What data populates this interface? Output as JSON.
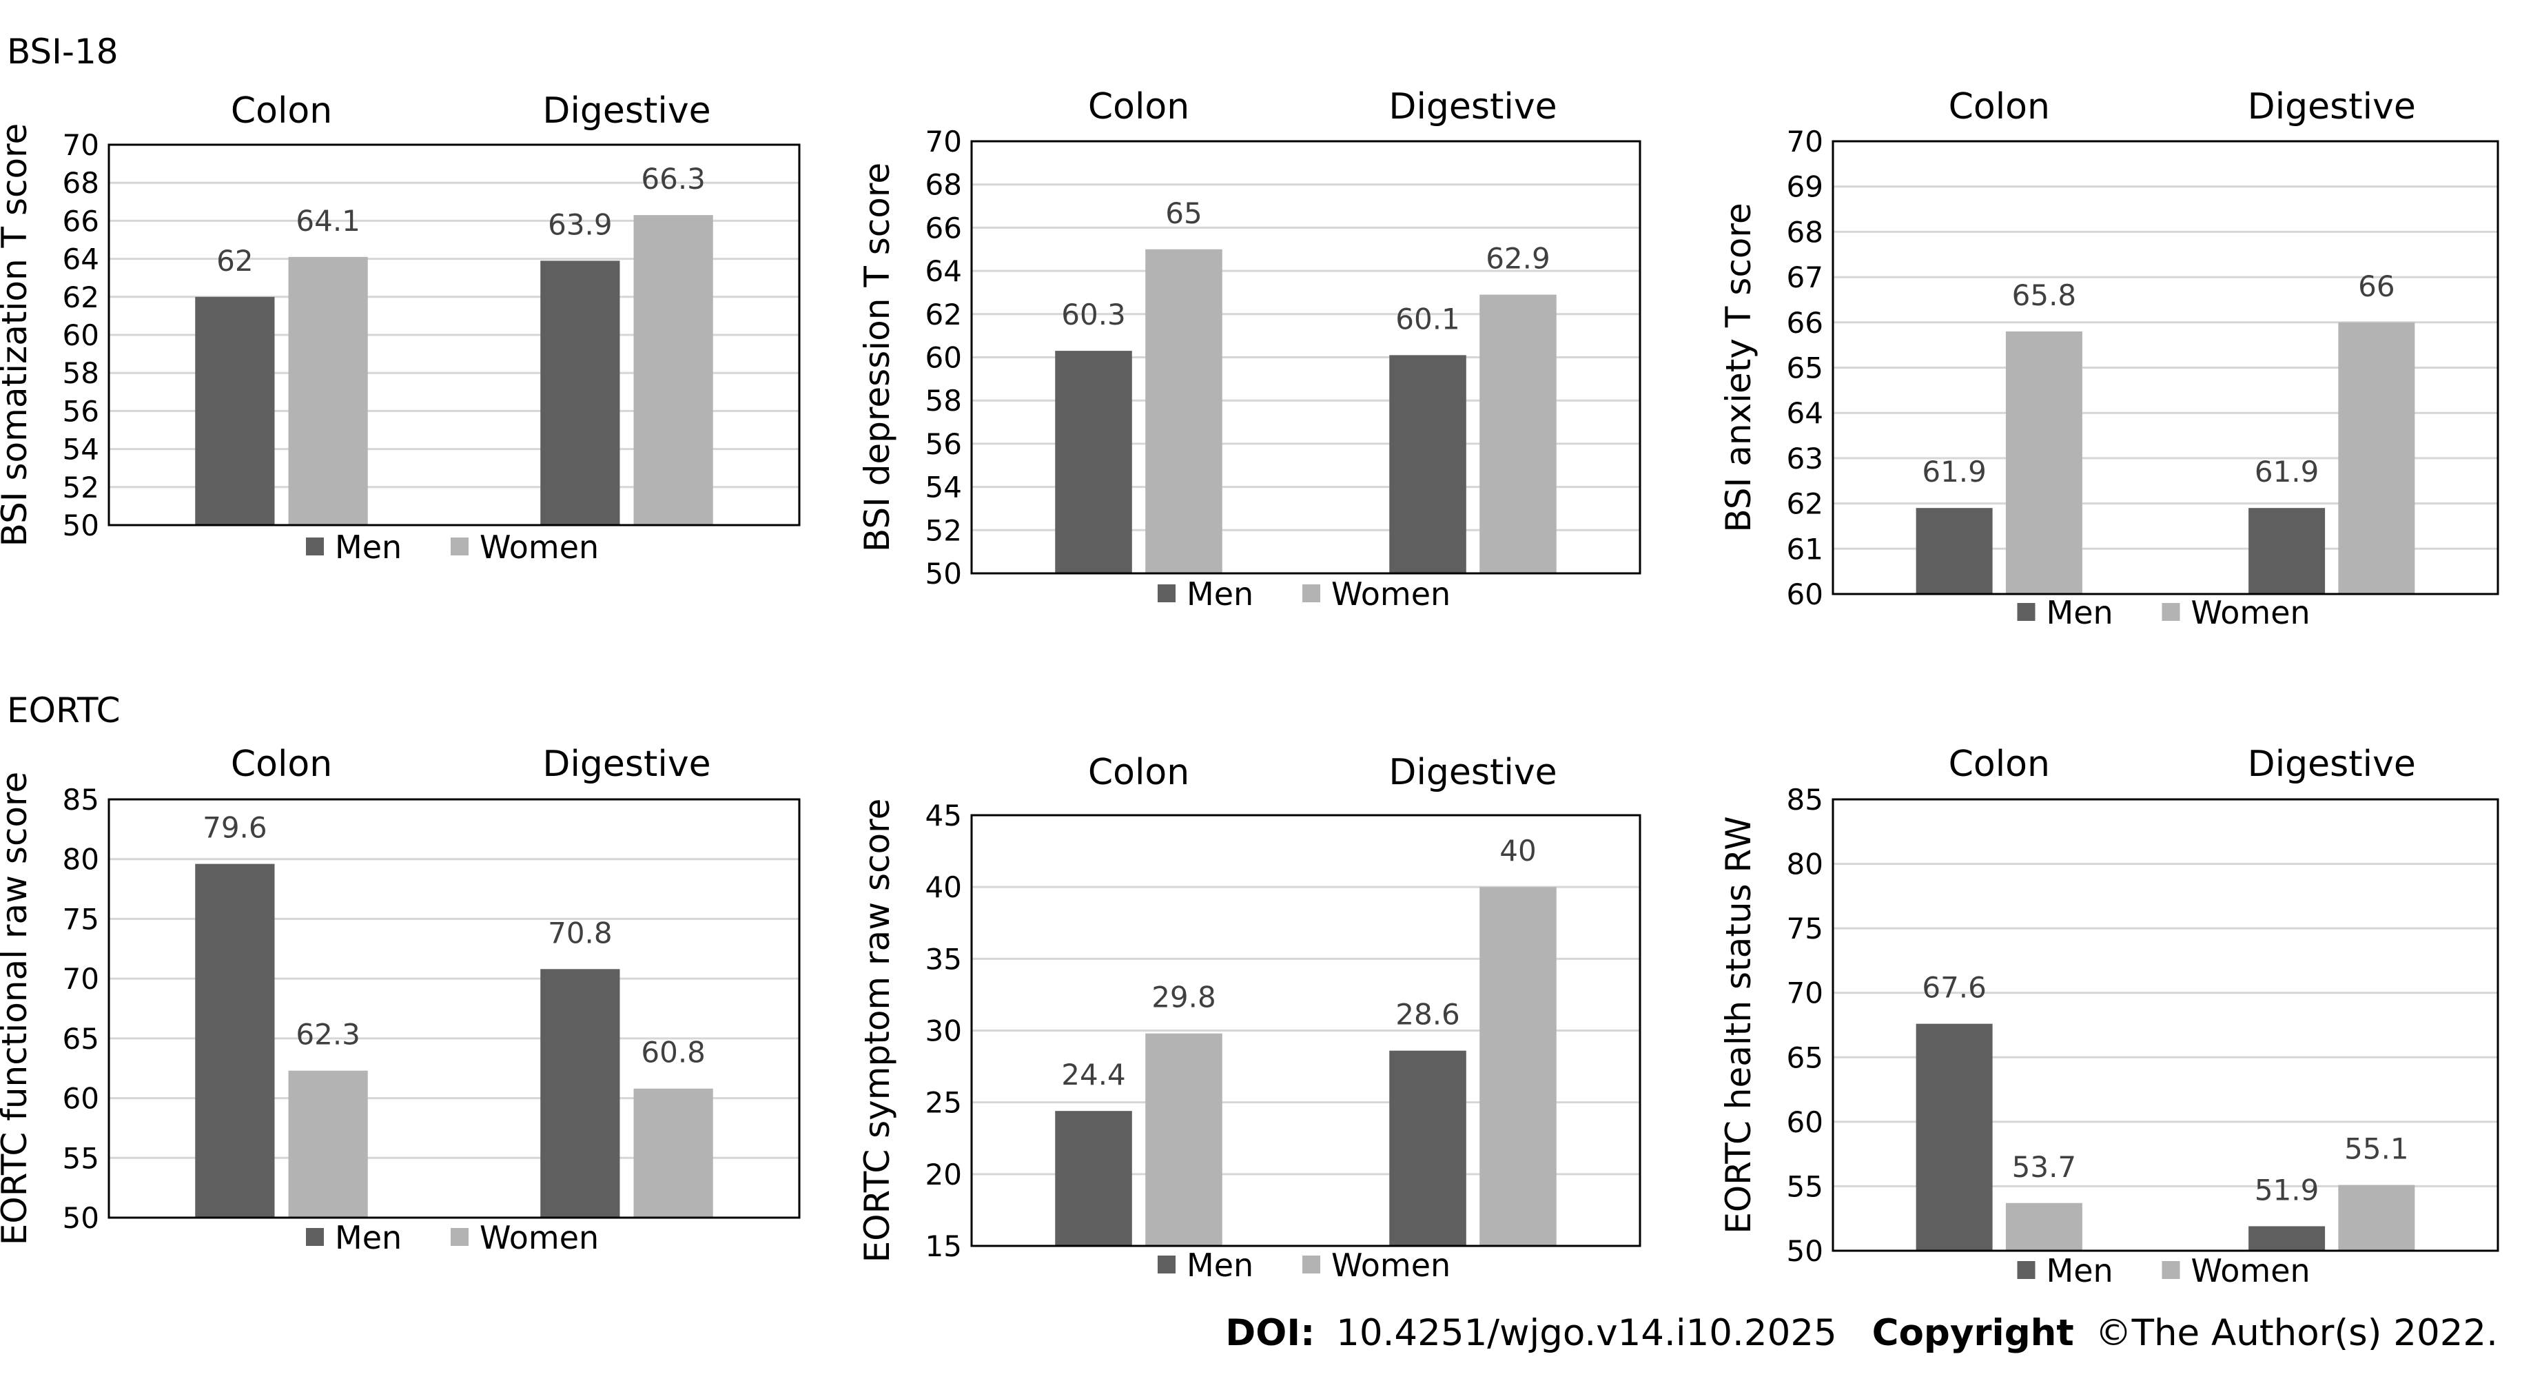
{
  "sections": [
    {
      "label": "BSI-18"
    },
    {
      "label": "EORTC"
    }
  ],
  "legend": {
    "men": "Men",
    "women": "Women"
  },
  "colors": {
    "men": "#5f5f5f",
    "women": "#b3b3b3",
    "grid": "#d6d6d6",
    "axis": "#000000",
    "value_label": "#404040"
  },
  "footer": {
    "doi_label": "DOI:",
    "doi": "10.4251/wjgo.v14.i10.2025",
    "copyright_label": "Copyright",
    "copyright": "©The Author(s) 2022."
  },
  "chart_data": [
    {
      "id": "bsi-somatization",
      "type": "bar",
      "ylabel": "BSI somatization T score",
      "categories": [
        "Colon",
        "Digestive"
      ],
      "series": [
        {
          "name": "Men",
          "values": [
            62,
            63.9
          ],
          "labels": [
            "62",
            "63.9"
          ]
        },
        {
          "name": "Women",
          "values": [
            64.1,
            66.3
          ],
          "labels": [
            "64.1",
            "66.3"
          ]
        }
      ],
      "ylim": [
        50,
        70
      ],
      "yticks": [
        50,
        52,
        54,
        56,
        58,
        60,
        62,
        64,
        66,
        68,
        70
      ],
      "grid": true,
      "legend": "bottom"
    },
    {
      "id": "bsi-depression",
      "type": "bar",
      "ylabel": "BSI depression T score",
      "categories": [
        "Colon",
        "Digestive"
      ],
      "series": [
        {
          "name": "Men",
          "values": [
            60.3,
            60.1
          ],
          "labels": [
            "60.3",
            "60.1"
          ]
        },
        {
          "name": "Women",
          "values": [
            65,
            62.9
          ],
          "labels": [
            "65",
            "62.9"
          ]
        }
      ],
      "ylim": [
        50,
        70
      ],
      "yticks": [
        50,
        52,
        54,
        56,
        58,
        60,
        62,
        64,
        66,
        68,
        70
      ],
      "grid": true,
      "legend": "bottom"
    },
    {
      "id": "bsi-anxiety",
      "type": "bar",
      "ylabel": "BSI anxiety T score",
      "categories": [
        "Colon",
        "Digestive"
      ],
      "series": [
        {
          "name": "Men",
          "values": [
            61.9,
            61.9
          ],
          "labels": [
            "61.9",
            "61.9"
          ]
        },
        {
          "name": "Women",
          "values": [
            65.8,
            66
          ],
          "labels": [
            "65.8",
            "66"
          ]
        }
      ],
      "ylim": [
        60,
        70
      ],
      "yticks": [
        60,
        61,
        62,
        63,
        64,
        65,
        66,
        67,
        68,
        69,
        70
      ],
      "grid": true,
      "legend": "bottom"
    },
    {
      "id": "eortc-functional",
      "type": "bar",
      "ylabel": "EORTC functional raw score",
      "categories": [
        "Colon",
        "Digestive"
      ],
      "series": [
        {
          "name": "Men",
          "values": [
            79.6,
            70.8
          ],
          "labels": [
            "79.6",
            "70.8"
          ]
        },
        {
          "name": "Women",
          "values": [
            62.3,
            60.8
          ],
          "labels": [
            "62.3",
            "60.8"
          ]
        }
      ],
      "ylim": [
        50,
        85
      ],
      "yticks": [
        50,
        55,
        60,
        65,
        70,
        75,
        80,
        85
      ],
      "grid": true,
      "legend": "bottom"
    },
    {
      "id": "eortc-symptom",
      "type": "bar",
      "ylabel": "EORTC symptom raw score",
      "categories": [
        "Colon",
        "Digestive"
      ],
      "series": [
        {
          "name": "Men",
          "values": [
            24.4,
            28.6
          ],
          "labels": [
            "24.4",
            "28.6"
          ]
        },
        {
          "name": "Women",
          "values": [
            29.8,
            40
          ],
          "labels": [
            "29.8",
            "40"
          ]
        }
      ],
      "ylim": [
        15,
        45
      ],
      "yticks": [
        15,
        20,
        25,
        30,
        35,
        40,
        45
      ],
      "grid": true,
      "legend": "bottom"
    },
    {
      "id": "eortc-health",
      "type": "bar",
      "ylabel": "EORTC health status RW",
      "categories": [
        "Colon",
        "Digestive"
      ],
      "series": [
        {
          "name": "Men",
          "values": [
            67.6,
            51.9
          ],
          "labels": [
            "67.6",
            "51.9"
          ]
        },
        {
          "name": "Women",
          "values": [
            53.7,
            55.1
          ],
          "labels": [
            "53.7",
            "55.1"
          ]
        }
      ],
      "ylim": [
        50,
        85
      ],
      "yticks": [
        50,
        55,
        60,
        65,
        70,
        75,
        80,
        85
      ],
      "grid": true,
      "legend": "bottom"
    }
  ]
}
